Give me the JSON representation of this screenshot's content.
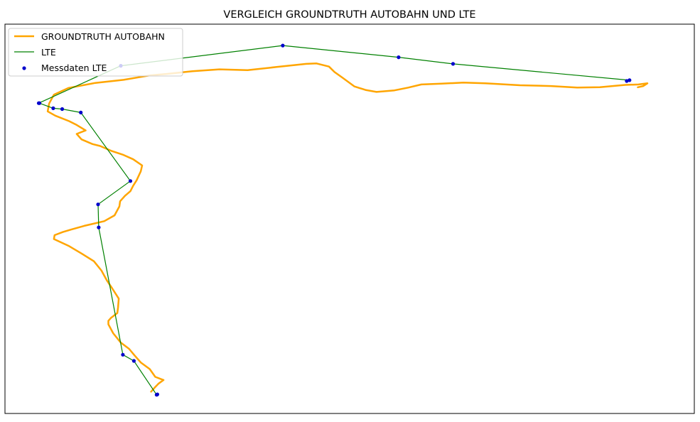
{
  "chart_data": {
    "type": "line",
    "title": "VERGLEICH GROUNDTRUTH AUTOBAHN UND LTE",
    "xlabel": "",
    "ylabel": "",
    "axes_visible": false,
    "grid": false,
    "legend_placement": "top-left",
    "xlim": [
      0,
      1000
    ],
    "ylim": [
      0,
      1000
    ],
    "series": [
      {
        "name": "GROUNDTRUTH AUTOBAHN",
        "kind": "line",
        "color": "#ffa500",
        "points": [
          [
            212,
            56
          ],
          [
            217,
            66
          ],
          [
            223,
            77
          ],
          [
            230,
            86
          ],
          [
            218,
            94
          ],
          [
            210,
            114
          ],
          [
            197,
            131
          ],
          [
            188,
            149
          ],
          [
            180,
            166
          ],
          [
            168,
            182
          ],
          [
            157,
            206
          ],
          [
            150,
            229
          ],
          [
            150,
            238
          ],
          [
            154,
            246
          ],
          [
            163,
            258
          ],
          [
            164,
            272
          ],
          [
            165,
            295
          ],
          [
            155,
            323
          ],
          [
            148,
            341
          ],
          [
            140,
            367
          ],
          [
            129,
            391
          ],
          [
            111,
            411
          ],
          [
            93,
            430
          ],
          [
            71,
            448
          ],
          [
            72,
            458
          ],
          [
            84,
            466
          ],
          [
            97,
            473
          ],
          [
            115,
            482
          ],
          [
            144,
            494
          ],
          [
            159,
            509
          ],
          [
            166,
            532
          ],
          [
            167,
            545
          ],
          [
            174,
            559
          ],
          [
            182,
            571
          ],
          [
            186,
            585
          ],
          [
            191,
            599
          ],
          [
            197,
            622
          ],
          [
            199,
            637
          ],
          [
            186,
            653
          ],
          [
            172,
            664
          ],
          [
            155,
            674
          ],
          [
            138,
            687
          ],
          [
            127,
            692
          ],
          [
            111,
            704
          ],
          [
            104,
            718
          ],
          [
            117,
            727
          ],
          [
            104,
            741
          ],
          [
            93,
            751
          ],
          [
            73,
            765
          ],
          [
            62,
            776
          ],
          [
            64,
            796
          ],
          [
            71,
            819
          ],
          [
            92,
            836
          ],
          [
            131,
            849
          ],
          [
            172,
            857
          ],
          [
            209,
            868
          ],
          [
            234,
            872
          ],
          [
            272,
            879
          ],
          [
            311,
            884
          ],
          [
            352,
            882
          ],
          [
            394,
            890
          ],
          [
            437,
            898
          ],
          [
            452,
            899
          ],
          [
            470,
            891
          ],
          [
            478,
            877
          ],
          [
            490,
            862
          ],
          [
            507,
            840
          ],
          [
            523,
            831
          ],
          [
            539,
            826
          ],
          [
            565,
            830
          ],
          [
            585,
            837
          ],
          [
            604,
            845
          ],
          [
            633,
            847
          ],
          [
            665,
            850
          ],
          [
            697,
            848
          ],
          [
            747,
            843
          ],
          [
            792,
            841
          ],
          [
            830,
            837
          ],
          [
            863,
            838
          ],
          [
            900,
            844
          ],
          [
            919,
            845
          ],
          [
            932,
            848
          ],
          [
            926,
            841
          ],
          [
            918,
            838
          ]
        ]
      },
      {
        "name": "LTE",
        "kind": "line",
        "color": "#008000",
        "points": [
          [
            221,
            49
          ],
          [
            220,
            48
          ],
          [
            187,
            135
          ],
          [
            171,
            151
          ],
          [
            136,
            478
          ],
          [
            135,
            537
          ],
          [
            182,
            597
          ],
          [
            110,
            773
          ],
          [
            83,
            782
          ],
          [
            70,
            784
          ],
          [
            50,
            797
          ],
          [
            49,
            797
          ],
          [
            168,
            893
          ],
          [
            403,
            945
          ],
          [
            571,
            915
          ],
          [
            650,
            898
          ],
          [
            906,
            856
          ],
          [
            902,
            854
          ]
        ]
      },
      {
        "name": "Messdaten LTE",
        "kind": "scatter",
        "color": "#0000cc",
        "points": [
          [
            221,
            49
          ],
          [
            220,
            48
          ],
          [
            187,
            135
          ],
          [
            171,
            151
          ],
          [
            136,
            478
          ],
          [
            135,
            537
          ],
          [
            182,
            597
          ],
          [
            110,
            773
          ],
          [
            83,
            782
          ],
          [
            70,
            784
          ],
          [
            50,
            797
          ],
          [
            49,
            797
          ],
          [
            168,
            893
          ],
          [
            403,
            945
          ],
          [
            571,
            915
          ],
          [
            650,
            898
          ],
          [
            906,
            856
          ],
          [
            902,
            854
          ]
        ]
      }
    ]
  }
}
